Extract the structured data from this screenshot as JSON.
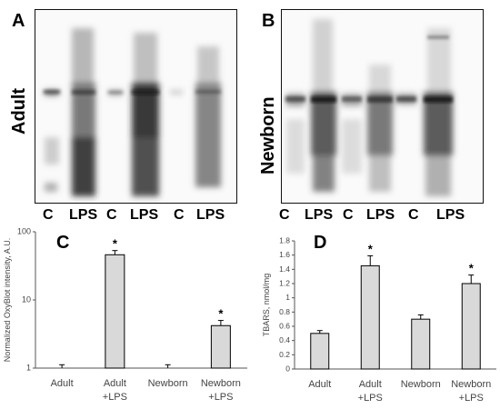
{
  "panels": {
    "a": {
      "letter": "A",
      "row_label": "Adult",
      "lanes": [
        "C",
        "LPS",
        "C",
        "LPS",
        "C",
        "LPS"
      ]
    },
    "b": {
      "letter": "B",
      "row_label": "Newborn",
      "lanes": [
        "C",
        "LPS",
        "C",
        "LPS",
        "C",
        "LPS"
      ]
    },
    "c": {
      "letter": "C"
    },
    "d": {
      "letter": "D"
    }
  },
  "chart_data": [
    {
      "panel": "C",
      "type": "bar",
      "categories": [
        [
          "Adult"
        ],
        [
          "Adult",
          "+LPS"
        ],
        [
          "Newborn"
        ],
        [
          "Newborn",
          "+LPS"
        ]
      ],
      "values": [
        1.0,
        46,
        1.0,
        4.2
      ],
      "errors": [
        0.12,
        7,
        0.12,
        0.8
      ],
      "significance": [
        "",
        "*",
        "",
        "*"
      ],
      "ylabel": "Normalized OxyBlot intensity, A.U.",
      "yscale": "log",
      "ylim": [
        1,
        100
      ],
      "yticks": [
        1,
        10,
        100
      ],
      "ytick_labels": [
        "1",
        "10",
        "100"
      ],
      "bar_color": "#d9d9d9",
      "grid": false
    },
    {
      "panel": "D",
      "type": "bar",
      "categories": [
        [
          "Adult"
        ],
        [
          "Adult",
          "+LPS"
        ],
        [
          "Newborn"
        ],
        [
          "Newborn",
          "+LPS"
        ]
      ],
      "values": [
        0.5,
        1.45,
        0.7,
        1.2
      ],
      "errors": [
        0.04,
        0.14,
        0.06,
        0.12
      ],
      "significance": [
        "",
        "*",
        "",
        "*"
      ],
      "ylabel": "TBARS, nmol/mg",
      "yscale": "linear",
      "ylim": [
        0,
        1.8
      ],
      "yticks": [
        0,
        0.2,
        0.4,
        0.6,
        0.8,
        1,
        1.2,
        1.4,
        1.6,
        1.8
      ],
      "ytick_labels": [
        "0",
        "0.2",
        "0.4",
        "0.6",
        "0.8",
        "1",
        "1.2",
        "1.4",
        "1.6",
        "1.8"
      ],
      "bar_color": "#d9d9d9",
      "grid": false
    }
  ]
}
